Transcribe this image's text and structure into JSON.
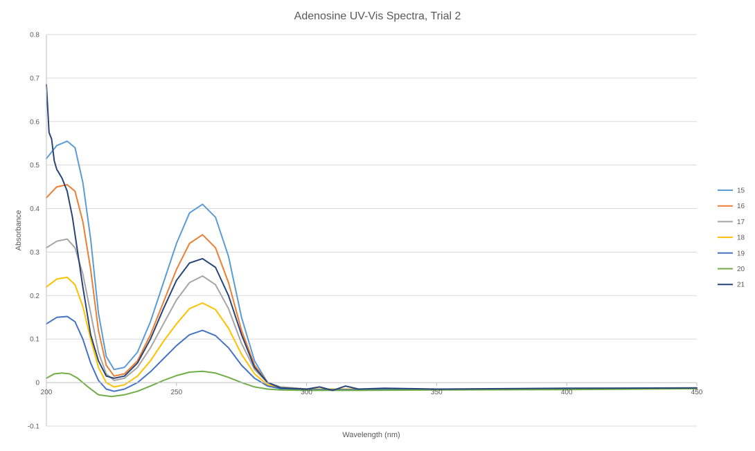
{
  "chart_data": {
    "type": "line",
    "title": "Adenosine UV-Vis Spectra, Trial 2",
    "xlabel": "Wavelength (nm)",
    "ylabel": "Absorbance",
    "xlim": [
      200,
      450
    ],
    "ylim": [
      -0.1,
      0.8
    ],
    "xticks": [
      200,
      250,
      300,
      350,
      400,
      450
    ],
    "yticks": [
      -0.1,
      0,
      0.1,
      0.2,
      0.3,
      0.4,
      0.5,
      0.6,
      0.7,
      0.8
    ],
    "grid": true,
    "legend": "right",
    "series": [
      {
        "name": "15",
        "color": "#5b9bd5",
        "x": [
          200,
          204,
          208,
          211,
          214,
          217,
          220,
          223,
          226,
          230,
          235,
          240,
          245,
          250,
          255,
          260,
          265,
          270,
          275,
          280,
          285,
          290,
          300,
          320,
          350,
          400,
          450
        ],
        "y": [
          0.515,
          0.545,
          0.555,
          0.54,
          0.46,
          0.33,
          0.16,
          0.06,
          0.03,
          0.035,
          0.07,
          0.14,
          0.23,
          0.32,
          0.39,
          0.41,
          0.38,
          0.29,
          0.15,
          0.05,
          0.0,
          -0.01,
          -0.015,
          -0.015,
          -0.015,
          -0.015,
          -0.013
        ]
      },
      {
        "name": "16",
        "color": "#ed7d31",
        "x": [
          200,
          204,
          208,
          211,
          214,
          217,
          220,
          223,
          226,
          230,
          235,
          240,
          245,
          250,
          255,
          260,
          265,
          270,
          275,
          280,
          285,
          290,
          300,
          320,
          350,
          400,
          450
        ],
        "y": [
          0.425,
          0.45,
          0.455,
          0.44,
          0.37,
          0.26,
          0.12,
          0.04,
          0.015,
          0.02,
          0.05,
          0.11,
          0.185,
          0.26,
          0.32,
          0.34,
          0.31,
          0.23,
          0.12,
          0.04,
          0.0,
          -0.01,
          -0.015,
          -0.015,
          -0.015,
          -0.015,
          -0.013
        ]
      },
      {
        "name": "17",
        "color": "#a5a5a5",
        "x": [
          200,
          204,
          208,
          211,
          214,
          217,
          220,
          223,
          226,
          230,
          235,
          240,
          245,
          250,
          255,
          260,
          265,
          270,
          275,
          280,
          285,
          290,
          300,
          320,
          350,
          400,
          450
        ],
        "y": [
          0.31,
          0.325,
          0.33,
          0.31,
          0.25,
          0.16,
          0.07,
          0.02,
          0.005,
          0.01,
          0.035,
          0.08,
          0.135,
          0.19,
          0.23,
          0.245,
          0.225,
          0.17,
          0.09,
          0.03,
          0.0,
          -0.01,
          -0.015,
          -0.015,
          -0.015,
          -0.015,
          -0.013
        ]
      },
      {
        "name": "18",
        "color": "#ffc000",
        "x": [
          200,
          204,
          208,
          211,
          214,
          217,
          220,
          223,
          226,
          230,
          235,
          240,
          245,
          250,
          255,
          260,
          265,
          270,
          275,
          280,
          285,
          290,
          300,
          320,
          350,
          400,
          450
        ],
        "y": [
          0.22,
          0.238,
          0.242,
          0.225,
          0.175,
          0.1,
          0.035,
          0.0,
          -0.01,
          -0.005,
          0.015,
          0.05,
          0.095,
          0.135,
          0.17,
          0.183,
          0.168,
          0.125,
          0.065,
          0.02,
          -0.005,
          -0.012,
          -0.015,
          -0.015,
          -0.015,
          -0.015,
          -0.013
        ]
      },
      {
        "name": "19",
        "color": "#4472c4",
        "x": [
          200,
          204,
          208,
          211,
          214,
          217,
          220,
          223,
          226,
          230,
          235,
          240,
          245,
          250,
          255,
          260,
          265,
          270,
          275,
          280,
          285,
          290,
          300,
          320,
          350,
          400,
          450
        ],
        "y": [
          0.135,
          0.15,
          0.152,
          0.14,
          0.1,
          0.045,
          0.005,
          -0.015,
          -0.02,
          -0.015,
          0.0,
          0.025,
          0.055,
          0.085,
          0.11,
          0.12,
          0.108,
          0.08,
          0.04,
          0.01,
          -0.008,
          -0.014,
          -0.016,
          -0.016,
          -0.016,
          -0.015,
          -0.013
        ]
      },
      {
        "name": "20",
        "color": "#70ad47",
        "x": [
          200,
          203,
          206,
          209,
          212,
          216,
          220,
          225,
          230,
          235,
          240,
          245,
          250,
          255,
          260,
          265,
          270,
          275,
          280,
          285,
          290,
          300,
          320,
          350,
          400,
          450
        ],
        "y": [
          0.01,
          0.02,
          0.022,
          0.02,
          0.01,
          -0.01,
          -0.028,
          -0.032,
          -0.028,
          -0.02,
          -0.008,
          0.005,
          0.016,
          0.024,
          0.026,
          0.022,
          0.012,
          0.0,
          -0.01,
          -0.015,
          -0.017,
          -0.018,
          -0.018,
          -0.017,
          -0.016,
          -0.014
        ]
      },
      {
        "name": "21",
        "color": "#264478",
        "x": [
          200,
          201,
          202,
          203,
          204,
          205,
          206,
          208,
          210,
          212,
          214,
          217,
          220,
          223,
          226,
          230,
          235,
          240,
          245,
          250,
          255,
          260,
          265,
          270,
          275,
          280,
          285,
          290,
          300,
          305,
          310,
          315,
          320,
          330,
          350,
          400,
          450
        ],
        "y": [
          0.685,
          0.575,
          0.56,
          0.51,
          0.49,
          0.48,
          0.47,
          0.44,
          0.38,
          0.3,
          0.22,
          0.11,
          0.05,
          0.015,
          0.01,
          0.015,
          0.045,
          0.1,
          0.17,
          0.235,
          0.275,
          0.285,
          0.265,
          0.2,
          0.11,
          0.035,
          0.0,
          -0.012,
          -0.015,
          -0.01,
          -0.018,
          -0.008,
          -0.015,
          -0.013,
          -0.015,
          -0.013,
          -0.012
        ]
      }
    ]
  }
}
